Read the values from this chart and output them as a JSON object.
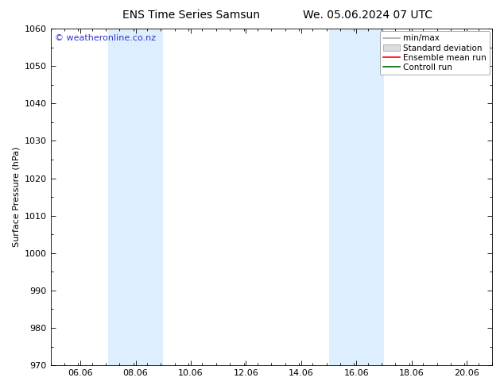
{
  "title_left": "ENS Time Series Samsun",
  "title_right": "We. 05.06.2024 07 UTC",
  "ylabel": "Surface Pressure (hPa)",
  "ylim": [
    970,
    1060
  ],
  "yticks": [
    970,
    980,
    990,
    1000,
    1010,
    1020,
    1030,
    1040,
    1050,
    1060
  ],
  "xtick_labels": [
    "06.06",
    "08.06",
    "10.06",
    "12.06",
    "14.06",
    "16.06",
    "18.06",
    "20.06"
  ],
  "xtick_positions": [
    0.583,
    2.583,
    4.583,
    6.583,
    8.583,
    10.583,
    12.583,
    14.583
  ],
  "xlim": [
    -0.5,
    15.5
  ],
  "shaded_bands": [
    {
      "xmin": 1.583,
      "xmax": 3.583
    },
    {
      "xmin": 9.583,
      "xmax": 11.583
    }
  ],
  "shaded_color": "#ddeeff",
  "watermark": "© weatheronline.co.nz",
  "watermark_color": "#3333cc",
  "legend_items": [
    {
      "label": "min/max",
      "color": "#aaaaaa",
      "style": "line"
    },
    {
      "label": "Standard deviation",
      "color": "#cccccc",
      "style": "band"
    },
    {
      "label": "Ensemble mean run",
      "color": "#ff0000",
      "style": "line"
    },
    {
      "label": "Controll run",
      "color": "#006600",
      "style": "line"
    }
  ],
  "background_color": "#ffffff",
  "font_size": 8,
  "title_fontsize": 10
}
